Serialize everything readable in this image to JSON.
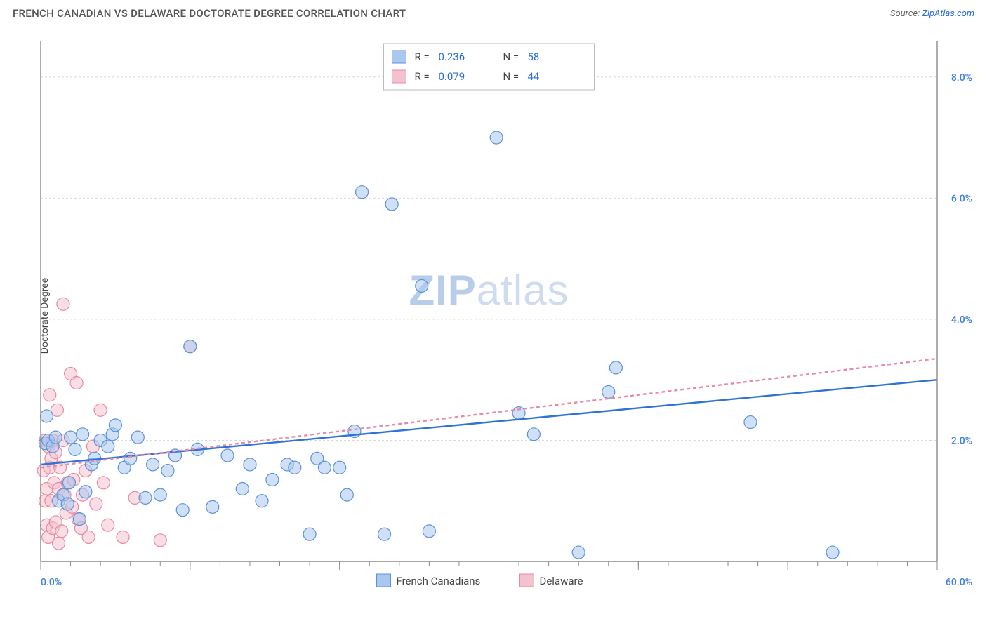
{
  "title": "FRENCH CANADIAN VS DELAWARE DOCTORATE DEGREE CORRELATION CHART",
  "source_label": "Source:",
  "source_name": "ZipAtlas.com",
  "ylabel": "Doctorate Degree",
  "watermark_a": "ZIP",
  "watermark_b": "atlas",
  "chart": {
    "type": "scatter-correlation",
    "background_color": "#ffffff",
    "grid_color": "#d9d9d9",
    "axis_color": "#8a8a8a",
    "xlim": [
      0,
      60
    ],
    "ylim": [
      0,
      8.6
    ],
    "x_end_labels": [
      "0.0%",
      "60.0%"
    ],
    "x_tick_step_major": 10,
    "x_minor_per_major": 5,
    "y_gridlines": [
      2.0,
      4.0,
      6.0,
      8.0
    ],
    "y_grid_labels": [
      "2.0%",
      "4.0%",
      "6.0%",
      "8.0%"
    ],
    "marker_radius": 9,
    "marker_opacity": 0.55,
    "line_width": 2.4,
    "series": [
      {
        "name": "French Canadians",
        "color_fill": "#a9c7ef",
        "color_stroke": "#5a93db",
        "trend_color": "#2d74d6",
        "trend_dash": "none",
        "R": "0.236",
        "N": "58",
        "trend": {
          "x1": 0,
          "y1": 1.6,
          "x2": 60,
          "y2": 3.0
        },
        "points": [
          [
            0.3,
            1.95
          ],
          [
            0.4,
            2.4
          ],
          [
            0.5,
            2.0
          ],
          [
            0.8,
            1.9
          ],
          [
            1.0,
            2.05
          ],
          [
            1.2,
            1.0
          ],
          [
            1.5,
            1.1
          ],
          [
            1.8,
            0.95
          ],
          [
            1.9,
            1.3
          ],
          [
            2.0,
            2.05
          ],
          [
            2.3,
            1.85
          ],
          [
            2.6,
            0.7
          ],
          [
            2.8,
            2.1
          ],
          [
            3.0,
            1.15
          ],
          [
            3.4,
            1.6
          ],
          [
            3.6,
            1.7
          ],
          [
            4.0,
            2.0
          ],
          [
            4.5,
            1.9
          ],
          [
            4.8,
            2.1
          ],
          [
            5.0,
            2.25
          ],
          [
            5.6,
            1.55
          ],
          [
            6.0,
            1.7
          ],
          [
            6.5,
            2.05
          ],
          [
            7.0,
            1.05
          ],
          [
            7.5,
            1.6
          ],
          [
            8.0,
            1.1
          ],
          [
            8.5,
            1.5
          ],
          [
            9.0,
            1.75
          ],
          [
            9.5,
            0.85
          ],
          [
            10.5,
            1.85
          ],
          [
            11.5,
            0.9
          ],
          [
            12.5,
            1.75
          ],
          [
            13.5,
            1.2
          ],
          [
            14.0,
            1.6
          ],
          [
            14.8,
            1.0
          ],
          [
            15.5,
            1.35
          ],
          [
            16.5,
            1.6
          ],
          [
            17.0,
            1.55
          ],
          [
            18.0,
            0.45
          ],
          [
            18.5,
            1.7
          ],
          [
            19.0,
            1.55
          ],
          [
            20.0,
            1.55
          ],
          [
            20.5,
            1.1
          ],
          [
            21.0,
            2.15
          ],
          [
            21.5,
            6.1
          ],
          [
            23.0,
            0.45
          ],
          [
            23.5,
            5.9
          ],
          [
            25.5,
            4.55
          ],
          [
            26.0,
            0.5
          ],
          [
            30.5,
            7.0
          ],
          [
            32.0,
            2.45
          ],
          [
            33.0,
            2.1
          ],
          [
            36.0,
            0.15
          ],
          [
            38.5,
            3.2
          ],
          [
            38.0,
            2.8
          ],
          [
            47.5,
            2.3
          ],
          [
            53.0,
            0.15
          ],
          [
            10.0,
            3.55
          ]
        ]
      },
      {
        "name": "Delaware",
        "color_fill": "#f4c2cf",
        "color_stroke": "#e88aa3",
        "trend_color": "#e88aa3",
        "trend_dash": "5 4",
        "R": "0.079",
        "N": "44",
        "trend": {
          "x1": 0,
          "y1": 1.55,
          "x2": 60,
          "y2": 3.35
        },
        "points": [
          [
            0.2,
            1.5
          ],
          [
            0.3,
            2.0
          ],
          [
            0.3,
            1.0
          ],
          [
            0.4,
            0.6
          ],
          [
            0.4,
            1.2
          ],
          [
            0.5,
            1.9
          ],
          [
            0.5,
            0.4
          ],
          [
            0.6,
            1.55
          ],
          [
            0.6,
            2.75
          ],
          [
            0.7,
            1.0
          ],
          [
            0.7,
            1.7
          ],
          [
            0.8,
            2.0
          ],
          [
            0.8,
            0.55
          ],
          [
            0.9,
            1.3
          ],
          [
            1.0,
            1.8
          ],
          [
            1.0,
            0.65
          ],
          [
            1.1,
            2.5
          ],
          [
            1.2,
            1.2
          ],
          [
            1.2,
            0.3
          ],
          [
            1.3,
            1.55
          ],
          [
            1.4,
            0.5
          ],
          [
            1.5,
            2.0
          ],
          [
            1.5,
            4.25
          ],
          [
            1.6,
            1.1
          ],
          [
            1.7,
            0.8
          ],
          [
            1.8,
            1.3
          ],
          [
            2.0,
            3.1
          ],
          [
            2.1,
            0.9
          ],
          [
            2.2,
            1.35
          ],
          [
            2.4,
            2.95
          ],
          [
            2.5,
            0.7
          ],
          [
            2.7,
            0.55
          ],
          [
            2.8,
            1.1
          ],
          [
            3.0,
            1.5
          ],
          [
            3.2,
            0.4
          ],
          [
            3.5,
            1.9
          ],
          [
            3.7,
            0.95
          ],
          [
            4.0,
            2.5
          ],
          [
            4.2,
            1.3
          ],
          [
            4.5,
            0.6
          ],
          [
            5.5,
            0.4
          ],
          [
            6.3,
            1.05
          ],
          [
            8.0,
            0.35
          ],
          [
            10.0,
            3.55
          ]
        ]
      }
    ]
  },
  "legend_top": {
    "rows": [
      {
        "swatch_fill": "#a9c7ef",
        "swatch_stroke": "#5a93db",
        "r_label": "R =",
        "r_val": "0.236",
        "n_label": "N =",
        "n_val": "58"
      },
      {
        "swatch_fill": "#f4c2cf",
        "swatch_stroke": "#e88aa3",
        "r_label": "R =",
        "r_val": "0.079",
        "n_label": "N =",
        "n_val": "44"
      }
    ]
  },
  "legend_bottom": [
    {
      "swatch_fill": "#a9c7ef",
      "swatch_stroke": "#5a93db",
      "label": "French Canadians"
    },
    {
      "swatch_fill": "#f4c2cf",
      "swatch_stroke": "#e88aa3",
      "label": "Delaware"
    }
  ]
}
